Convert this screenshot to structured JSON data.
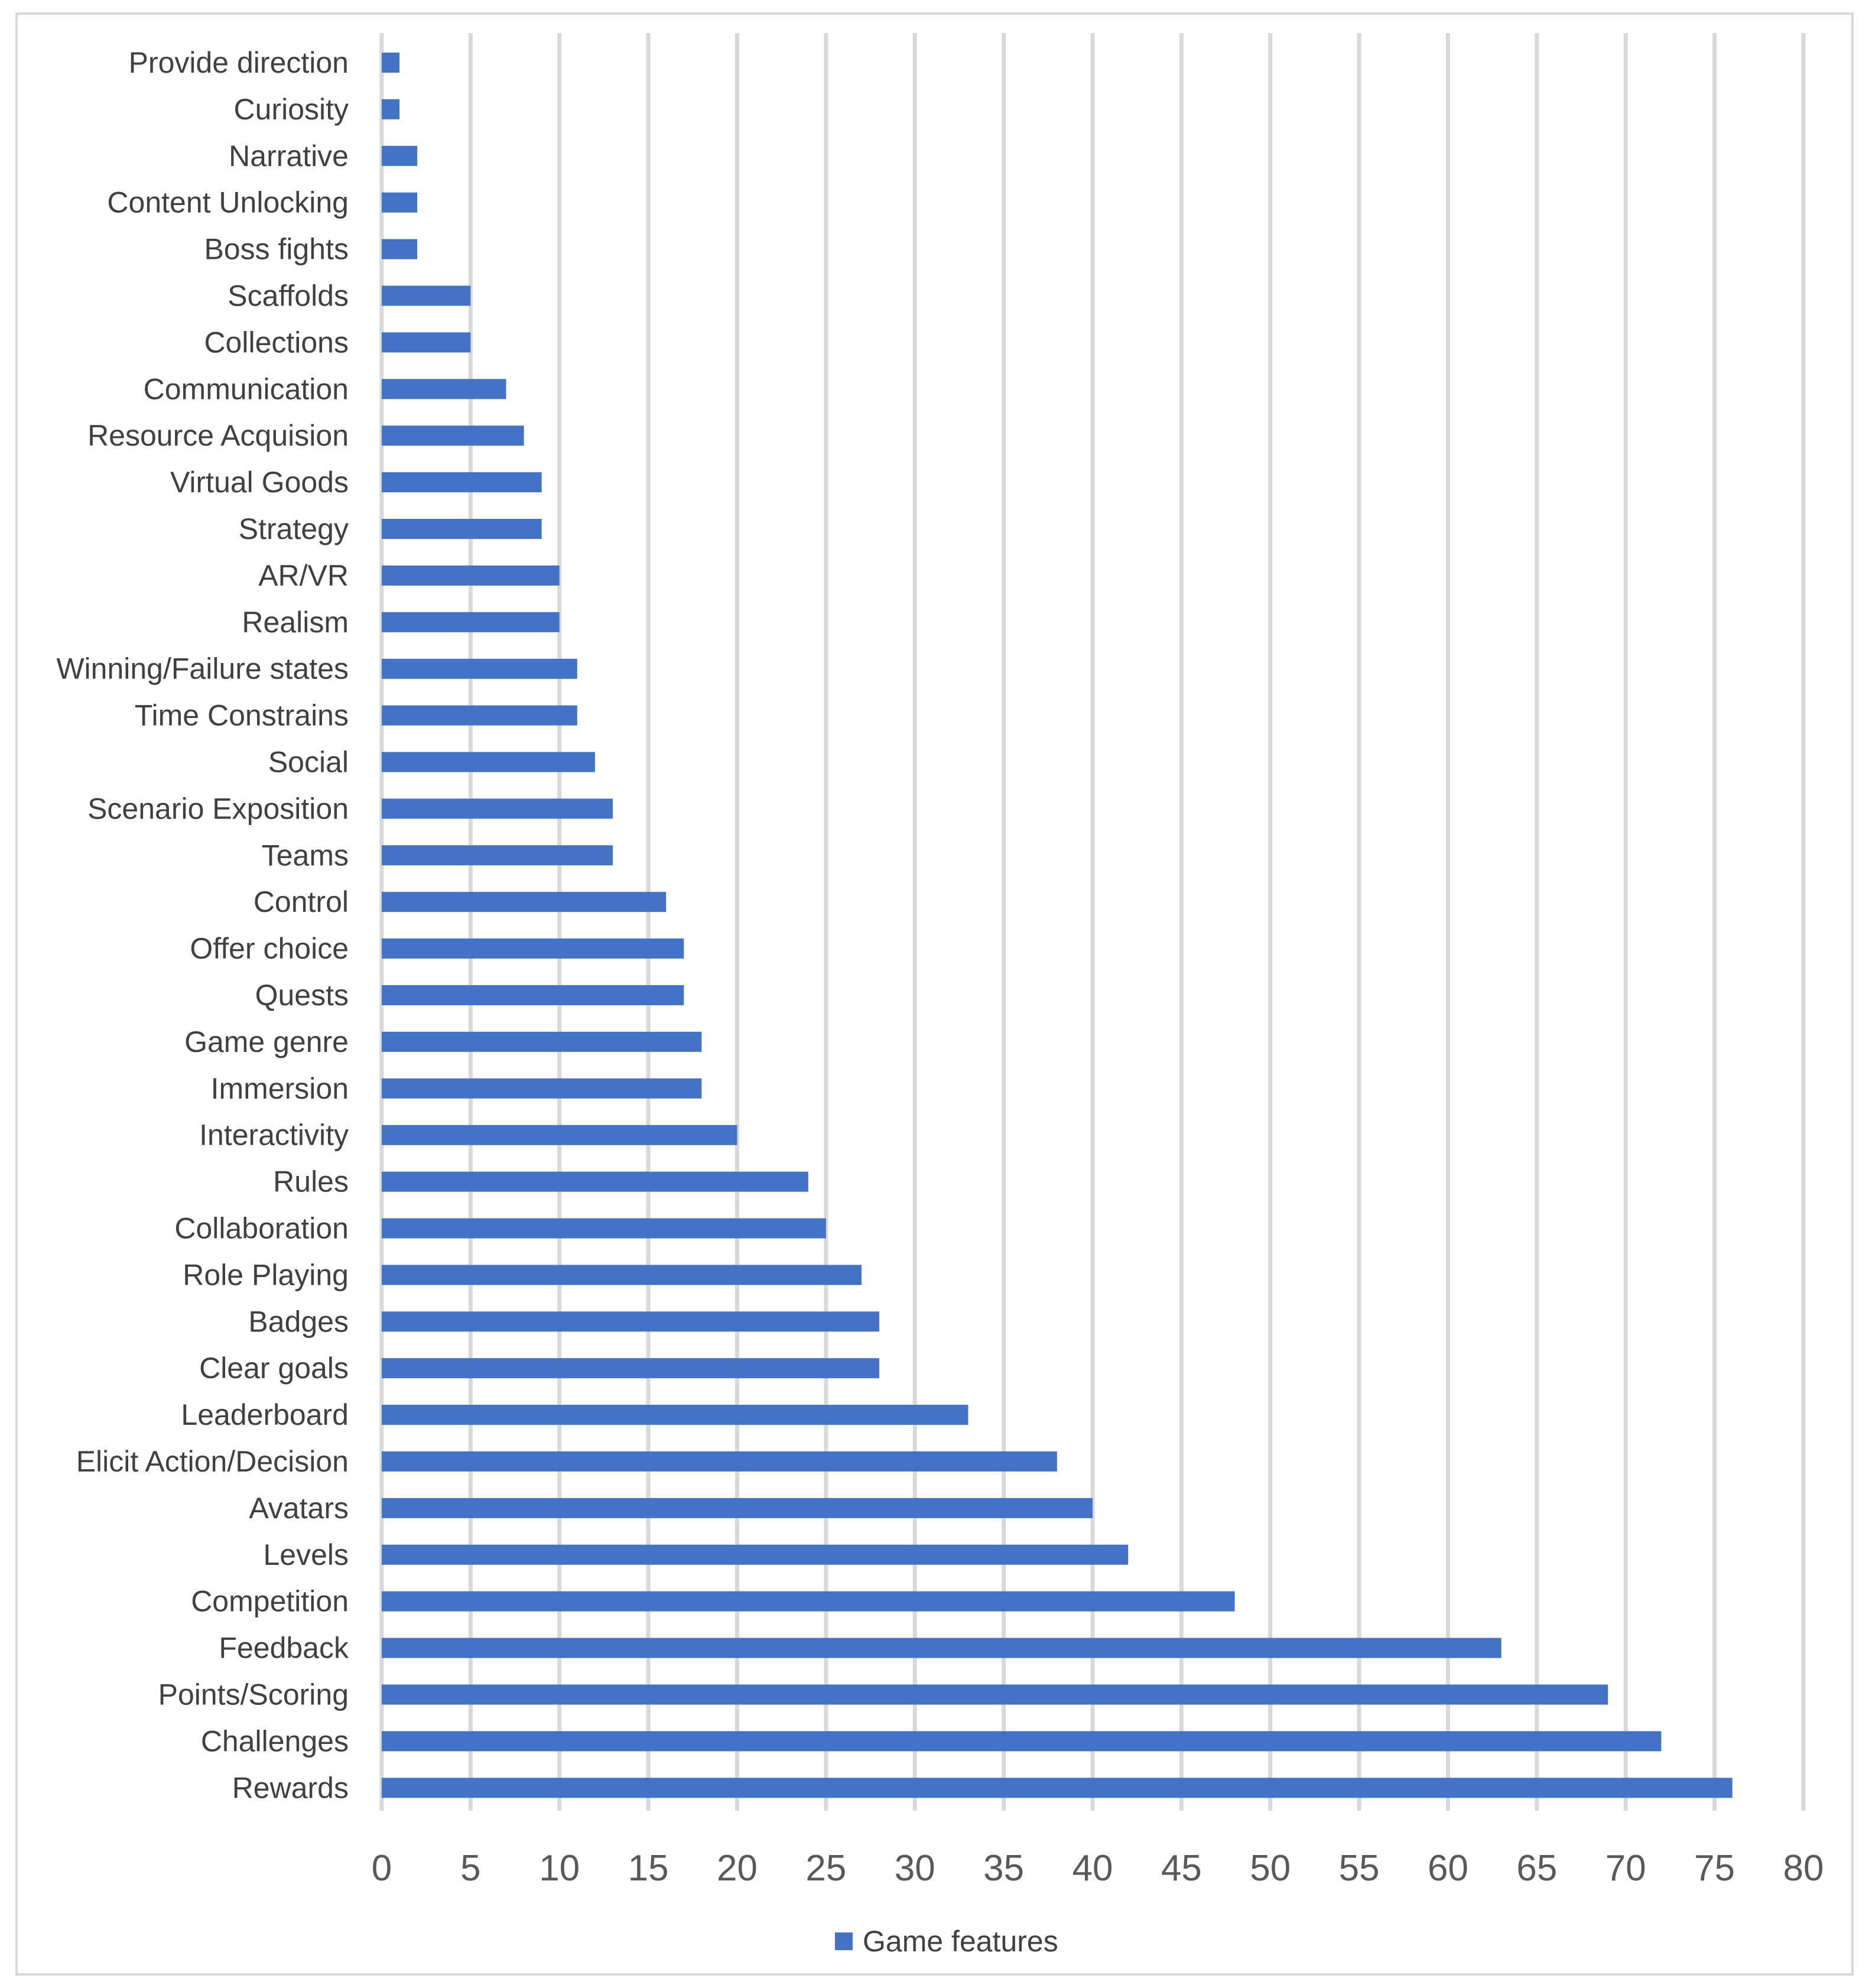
{
  "chart_data": {
    "type": "bar",
    "orientation": "horizontal",
    "categories": [
      "Provide direction",
      "Curiosity",
      "Narrative",
      "Content Unlocking",
      "Boss fights",
      "Scaffolds",
      "Collections",
      "Communication",
      "Resource Acquision",
      "Virtual Goods",
      "Strategy",
      "AR/VR",
      "Realism",
      "Winning/Failure states",
      "Time Constrains",
      "Social",
      "Scenario Exposition",
      "Teams",
      "Control",
      "Offer choice",
      "Quests",
      "Game genre",
      "Immersion",
      "Interactivity",
      "Rules",
      "Collaboration",
      "Role Playing",
      "Badges",
      "Clear goals",
      "Leaderboard",
      "Elicit Action/Decision",
      "Avatars",
      "Levels",
      "Competition",
      "Feedback",
      "Points/Scoring",
      "Challenges",
      "Rewards"
    ],
    "series": [
      {
        "name": "Game features",
        "values": [
          1,
          1,
          2,
          2,
          2,
          5,
          5,
          7,
          8,
          9,
          9,
          10,
          10,
          11,
          11,
          12,
          13,
          13,
          16,
          17,
          17,
          18,
          18,
          20,
          24,
          25,
          27,
          28,
          28,
          33,
          38,
          40,
          42,
          48,
          63,
          69,
          72,
          76
        ]
      }
    ],
    "xlim": [
      0,
      80
    ],
    "x_ticks": [
      0,
      5,
      10,
      15,
      20,
      25,
      30,
      35,
      40,
      45,
      50,
      55,
      60,
      65,
      70,
      75,
      80
    ],
    "grid": "vertical",
    "legend_position": "bottom",
    "colors": {
      "bar": "#4472c4",
      "grid": "#d9d9d9",
      "text": "#404040",
      "tick_text": "#595959"
    }
  }
}
